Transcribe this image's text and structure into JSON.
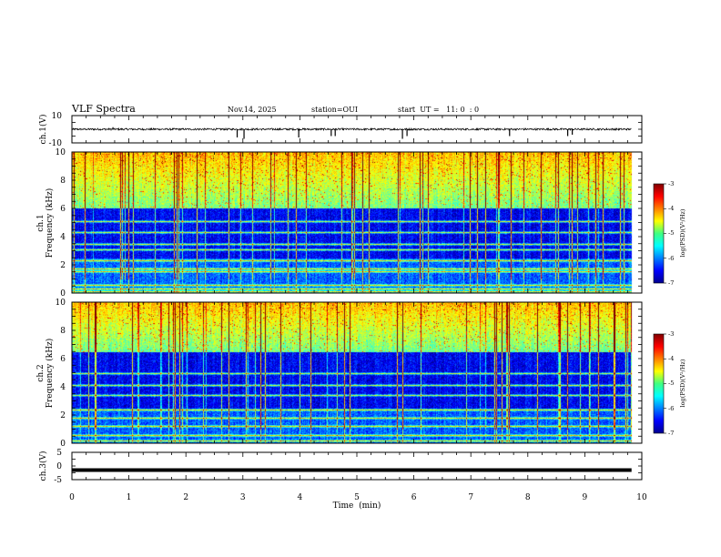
{
  "header": {
    "title": "VLF Spectra",
    "date": "Nov.14, 2025",
    "station": "station=OUI",
    "start": "start  UT =   11: 0  : 0"
  },
  "chart_data": [
    {
      "type": "line",
      "name": "ch1-waveform",
      "ylabel": "ch.1(V)",
      "ylim": [
        -10,
        10
      ],
      "yticks": [
        "10",
        "-10"
      ],
      "xlim": [
        0,
        10
      ],
      "baseline": 0,
      "trace_end_min": 9.82,
      "noise_amplitude": 0.7,
      "spikes": [
        {
          "t": 0.72,
          "v": 1.5
        },
        {
          "t": 2.9,
          "v": -6
        },
        {
          "t": 3.02,
          "v": -7
        },
        {
          "t": 3.98,
          "v": -6
        },
        {
          "t": 4.55,
          "v": -5
        },
        {
          "t": 4.62,
          "v": -5
        },
        {
          "t": 5.8,
          "v": -7
        },
        {
          "t": 5.88,
          "v": -5
        },
        {
          "t": 7.68,
          "v": -5
        },
        {
          "t": 8.7,
          "v": -5
        },
        {
          "t": 8.78,
          "v": -4
        }
      ]
    },
    {
      "type": "heatmap",
      "name": "ch1-spectrogram",
      "ylabel": "ch.1\nFrequency (kHz)",
      "ylabel_lines": [
        "ch.1",
        "Frequency (kHz)"
      ],
      "ylim": [
        0,
        10
      ],
      "yticks": [
        "10",
        "8",
        "6",
        "4",
        "2",
        "0"
      ],
      "xlim": [
        0,
        10
      ],
      "data_end_min": 9.82,
      "zlim": [
        -7,
        -3
      ],
      "colorbar_label": "log(PSD)(V²/Hz)",
      "colorbar_ticks": [
        "-3",
        "-4",
        "-5",
        "-6",
        "-7"
      ],
      "high_activity_above_khz": 6.0,
      "tones_khz": [
        0.1,
        0.35,
        0.55,
        1.55,
        1.75,
        2.3,
        3.1,
        3.5,
        4.3,
        5.1
      ]
    },
    {
      "type": "heatmap",
      "name": "ch2-spectrogram",
      "ylabel": "ch.2\nFrequency (kHz)",
      "ylabel_lines": [
        "ch.2",
        "Frequency (kHz)"
      ],
      "ylim": [
        0,
        10
      ],
      "yticks": [
        "10",
        "8",
        "6",
        "4",
        "2",
        "0"
      ],
      "xlim": [
        0,
        10
      ],
      "data_end_min": 9.82,
      "zlim": [
        -7,
        -3
      ],
      "colorbar_label": "log(PSD)(V²/Hz)",
      "colorbar_ticks": [
        "-3",
        "-4",
        "-5",
        "-6",
        "-7"
      ],
      "high_activity_above_khz": 6.5,
      "tones_khz": [
        0.2,
        0.6,
        1.2,
        1.8,
        2.4,
        3.4,
        4.1,
        5.0
      ]
    },
    {
      "type": "line",
      "name": "ch3-trace",
      "ylabel": "ch.3(V)",
      "ylim": [
        -5,
        5
      ],
      "yticks": [
        "5",
        "0",
        "-5"
      ],
      "xlim": [
        0,
        10
      ],
      "value": -1.5,
      "trace_end_min": 9.82,
      "xlabel": "Time  (min)",
      "xticks": [
        "0",
        "1",
        "2",
        "3",
        "4",
        "5",
        "6",
        "7",
        "8",
        "9",
        "10"
      ]
    }
  ]
}
